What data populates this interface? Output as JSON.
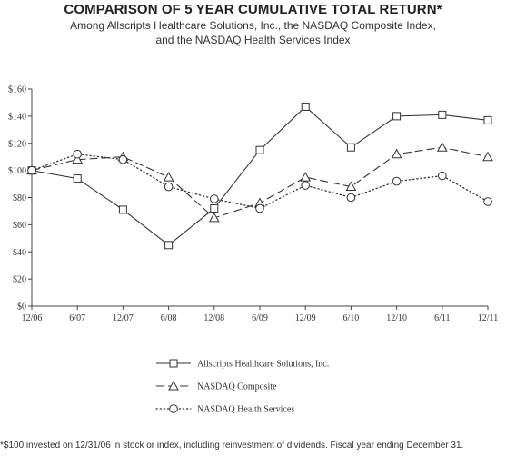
{
  "chart_data": {
    "type": "line",
    "title": "COMPARISON OF 5 YEAR CUMULATIVE TOTAL RETURN*",
    "subtitle_line1": "Among Allscripts Healthcare Solutions, Inc., the NASDAQ Composite Index,",
    "subtitle_line2": "and the NASDAQ Health Services Index",
    "categories": [
      "12/06",
      "6/07",
      "12/07",
      "6/08",
      "12/08",
      "6/09",
      "12/09",
      "6/10",
      "12/10",
      "6/11",
      "12/11"
    ],
    "y_ticks": [
      "$0",
      "$20",
      "$40",
      "$60",
      "$80",
      "$100",
      "$120",
      "$140",
      "$160"
    ],
    "ylim": [
      0,
      160
    ],
    "grid": false,
    "legend_position": "bottom",
    "series": [
      {
        "name": "Allscripts Healthcare Solutions, Inc.",
        "marker": "square",
        "dash": "solid",
        "values": [
          100,
          94,
          71,
          45,
          72,
          115,
          147,
          117,
          140,
          141,
          137
        ]
      },
      {
        "name": "NASDAQ Composite",
        "marker": "triangle",
        "dash": "dashed",
        "values": [
          100,
          108,
          110,
          95,
          65,
          76,
          95,
          88,
          112,
          117,
          110
        ]
      },
      {
        "name": "NASDAQ Health Services",
        "marker": "circle",
        "dash": "dotted",
        "values": [
          100,
          112,
          108,
          88,
          79,
          72,
          89,
          80,
          92,
          96,
          77
        ]
      }
    ]
  },
  "footnote": "*$100 invested on 12/31/06 in stock or index, including reinvestment of dividends. Fiscal year ending December 31."
}
